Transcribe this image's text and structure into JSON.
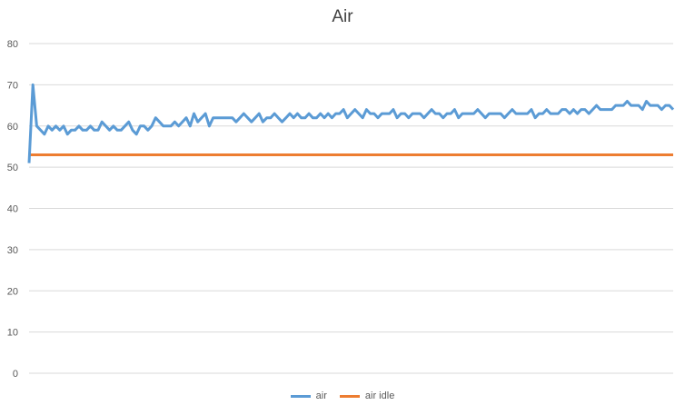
{
  "chart_data": {
    "type": "line",
    "title": "Air",
    "xlabel": "",
    "ylabel": "",
    "ylim": [
      0,
      80
    ],
    "yticks": [
      0,
      10,
      20,
      30,
      40,
      50,
      60,
      70,
      80
    ],
    "grid": true,
    "legend_position": "bottom",
    "colors": {
      "air": "#5B9BD5",
      "air_idle": "#ED7D31"
    },
    "series": [
      {
        "name": "air",
        "values": [
          51,
          70,
          60,
          59,
          58,
          60,
          59,
          60,
          59,
          60,
          58,
          59,
          59,
          60,
          59,
          59,
          60,
          59,
          59,
          61,
          60,
          59,
          60,
          59,
          59,
          60,
          61,
          59,
          58,
          60,
          60,
          59,
          60,
          62,
          61,
          60,
          60,
          60,
          61,
          60,
          61,
          62,
          60,
          63,
          61,
          62,
          63,
          60,
          62,
          62,
          62,
          62,
          62,
          62,
          61,
          62,
          63,
          62,
          61,
          62,
          63,
          61,
          62,
          62,
          63,
          62,
          61,
          62,
          63,
          62,
          63,
          62,
          62,
          63,
          62,
          62,
          63,
          62,
          63,
          62,
          63,
          63,
          64,
          62,
          63,
          64,
          63,
          62,
          64,
          63,
          63,
          62,
          63,
          63,
          63,
          64,
          62,
          63,
          63,
          62,
          63,
          63,
          63,
          62,
          63,
          64,
          63,
          63,
          62,
          63,
          63,
          64,
          62,
          63,
          63,
          63,
          63,
          64,
          63,
          62,
          63,
          63,
          63,
          63,
          62,
          63,
          64,
          63,
          63,
          63,
          63,
          64,
          62,
          63,
          63,
          64,
          63,
          63,
          63,
          64,
          64,
          63,
          64,
          63,
          64,
          64,
          63,
          64,
          65,
          64,
          64,
          64,
          64,
          65,
          65,
          65,
          66,
          65,
          65,
          65,
          64,
          66,
          65,
          65,
          65,
          64,
          65,
          65,
          64
        ]
      },
      {
        "name": "air idle",
        "values": [
          53,
          53,
          53,
          53,
          53,
          53,
          53,
          53,
          53,
          53,
          53,
          53,
          53,
          53,
          53,
          53,
          53,
          53,
          53,
          53,
          53,
          53,
          53,
          53,
          53,
          53,
          53,
          53,
          53,
          53,
          53,
          53,
          53,
          53,
          53,
          53,
          53,
          53,
          53,
          53,
          53,
          53,
          53,
          53,
          53,
          53,
          53,
          53,
          53,
          53,
          53,
          53,
          53,
          53,
          53,
          53,
          53,
          53,
          53,
          53,
          53,
          53,
          53,
          53,
          53,
          53,
          53,
          53,
          53,
          53,
          53,
          53,
          53,
          53,
          53,
          53,
          53,
          53,
          53,
          53,
          53,
          53,
          53,
          53,
          53,
          53,
          53,
          53,
          53,
          53,
          53,
          53,
          53,
          53,
          53,
          53,
          53,
          53,
          53,
          53,
          53,
          53,
          53,
          53,
          53,
          53,
          53,
          53,
          53,
          53,
          53,
          53,
          53,
          53,
          53,
          53,
          53,
          53,
          53,
          53,
          53,
          53,
          53,
          53,
          53,
          53,
          53,
          53,
          53,
          53,
          53,
          53,
          53,
          53,
          53,
          53,
          53,
          53,
          53,
          53,
          53,
          53,
          53,
          53,
          53,
          53,
          53,
          53,
          53,
          53,
          53,
          53,
          53,
          53,
          53,
          53,
          53,
          53,
          53,
          53,
          53,
          53,
          53,
          53,
          53,
          53,
          53,
          53,
          53
        ]
      }
    ]
  }
}
